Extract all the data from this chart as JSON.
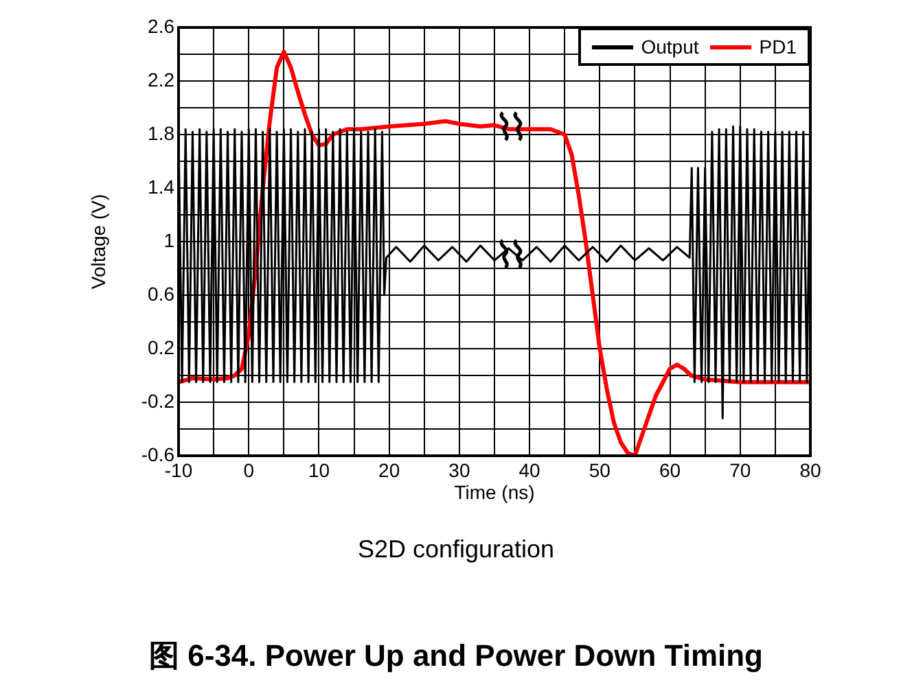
{
  "chart_data": {
    "type": "line",
    "title": "图 6-34. Power Up and Power Down Timing",
    "subtitle": "S2D configuration",
    "xlabel": "Time (ns)",
    "ylabel": "Voltage (V)",
    "xlim": [
      -10,
      80
    ],
    "xticks": [
      -10,
      {
        "value": -5,
        "label": null
      },
      0,
      {
        "value": 5,
        "label": null
      },
      10,
      {
        "value": 15,
        "label": null
      },
      20,
      {
        "value": 25,
        "label": null
      },
      30,
      {
        "value": 35,
        "label": null
      },
      40,
      {
        "value": 45,
        "label": null
      },
      50,
      {
        "value": 55,
        "label": null
      },
      60,
      {
        "value": 65,
        "label": null
      },
      70,
      {
        "value": 75,
        "label": null
      },
      80
    ],
    "ylim": [
      -0.6,
      2.6
    ],
    "yticks": [
      -0.6,
      {
        "value": -0.4,
        "label": null
      },
      -0.2,
      {
        "value": 0,
        "label": null
      },
      0.2,
      {
        "value": 0.4,
        "label": null
      },
      0.6,
      {
        "value": 0.8,
        "label": null
      },
      1,
      {
        "value": 1.2,
        "label": null
      },
      1.4,
      {
        "value": 1.6,
        "label": null
      },
      1.8,
      {
        "value": 2,
        "label": null
      },
      2.2,
      {
        "value": 2.4,
        "label": null
      },
      2.6
    ],
    "grid": true,
    "legend": "top right",
    "marker": "none",
    "line_style": "solid",
    "series": [
      {
        "name": "Output",
        "color": "#000000",
        "x": [
          -10,
          -9.5,
          -9,
          -8.5,
          -8,
          -7.5,
          -7,
          -6.5,
          -6,
          -5.5,
          -5,
          -4.5,
          -4,
          -3.5,
          -3,
          -2.5,
          -2,
          -1.5,
          -1,
          -0.5,
          0,
          0.5,
          1,
          1.5,
          2,
          2.5,
          3,
          3.5,
          4,
          4.5,
          5,
          5.5,
          6,
          6.5,
          7,
          7.5,
          8,
          8.5,
          9,
          9.5,
          10,
          10.5,
          11,
          11.5,
          12,
          12.5,
          13,
          13.5,
          14,
          14.5,
          15,
          15.5,
          16,
          16.5,
          17,
          17.5,
          18,
          18.5,
          19,
          19.3,
          19.6,
          21,
          23,
          25,
          27,
          29,
          31,
          33,
          35,
          37,
          39,
          41,
          43,
          45,
          47,
          49,
          51,
          53,
          55,
          57,
          59,
          61,
          62.8,
          63.1,
          63.5,
          64,
          64.5,
          65,
          65.5,
          66,
          66.5,
          67,
          67.5,
          68,
          68.5,
          69,
          69.5,
          70,
          70.5,
          71,
          71.5,
          72,
          72.5,
          73,
          73.5,
          74,
          74.5,
          75,
          75.5,
          76,
          76.5,
          77,
          77.5,
          78,
          78.5,
          79,
          79.5,
          80
        ],
        "values": [
          1.8,
          -0.05,
          1.84,
          -0.05,
          1.82,
          -0.05,
          1.84,
          -0.05,
          1.82,
          -0.05,
          1.84,
          -0.05,
          1.84,
          -0.05,
          1.82,
          -0.05,
          1.84,
          -0.05,
          1.82,
          -0.05,
          1.84,
          -0.05,
          1.84,
          -0.05,
          1.82,
          -0.05,
          1.84,
          -0.05,
          1.82,
          -0.05,
          1.84,
          -0.05,
          1.84,
          -0.05,
          1.82,
          -0.05,
          1.84,
          -0.05,
          1.82,
          -0.05,
          1.84,
          -0.05,
          1.84,
          -0.05,
          1.82,
          -0.05,
          1.84,
          -0.05,
          1.82,
          -0.05,
          1.84,
          -0.05,
          1.82,
          -0.05,
          1.82,
          -0.05,
          1.84,
          -0.05,
          1.82,
          0.6,
          0.88,
          0.96,
          0.85,
          0.97,
          0.86,
          0.96,
          0.85,
          0.97,
          0.86,
          0.95,
          0.86,
          0.96,
          0.85,
          0.97,
          0.86,
          0.96,
          0.85,
          0.97,
          0.86,
          0.95,
          0.86,
          0.96,
          0.88,
          1.55,
          -0.05,
          1.55,
          -0.05,
          1.55,
          -0.05,
          1.82,
          -0.05,
          1.84,
          -0.32,
          1.84,
          -0.05,
          1.86,
          -0.05,
          1.86,
          -0.05,
          1.84,
          -0.05,
          1.84,
          -0.05,
          1.82,
          -0.05,
          1.82,
          -0.05,
          1.82,
          -0.05,
          1.82,
          -0.05,
          1.82,
          -0.05,
          1.82,
          -0.05,
          1.82,
          -0.05,
          1.82
        ]
      },
      {
        "name": "PD1",
        "color": "#ff0000",
        "x": [
          -10,
          -8,
          -5,
          -3,
          -2,
          -1,
          0,
          1,
          2,
          3,
          4,
          5,
          6,
          7,
          8,
          9,
          10,
          11,
          12,
          14,
          16,
          20,
          25,
          28,
          30,
          33,
          35,
          37,
          40,
          43,
          45,
          46,
          47,
          48,
          49,
          50,
          51,
          52,
          53,
          54,
          55,
          56,
          57,
          58,
          59,
          60,
          61,
          62,
          63,
          65,
          70,
          75,
          80
        ],
        "values": [
          -0.05,
          -0.02,
          -0.03,
          -0.02,
          0,
          0.05,
          0.3,
          0.8,
          1.4,
          1.9,
          2.3,
          2.42,
          2.3,
          2.12,
          1.95,
          1.8,
          1.72,
          1.73,
          1.8,
          1.84,
          1.84,
          1.86,
          1.88,
          1.9,
          1.88,
          1.86,
          1.87,
          1.84,
          1.84,
          1.84,
          1.8,
          1.65,
          1.35,
          1,
          0.6,
          0.2,
          -0.1,
          -0.35,
          -0.5,
          -0.58,
          -0.6,
          -0.45,
          -0.3,
          -0.15,
          -0.05,
          0.05,
          0.08,
          0.05,
          0,
          -0.03,
          -0.05,
          -0.05,
          -0.05
        ]
      }
    ]
  }
}
